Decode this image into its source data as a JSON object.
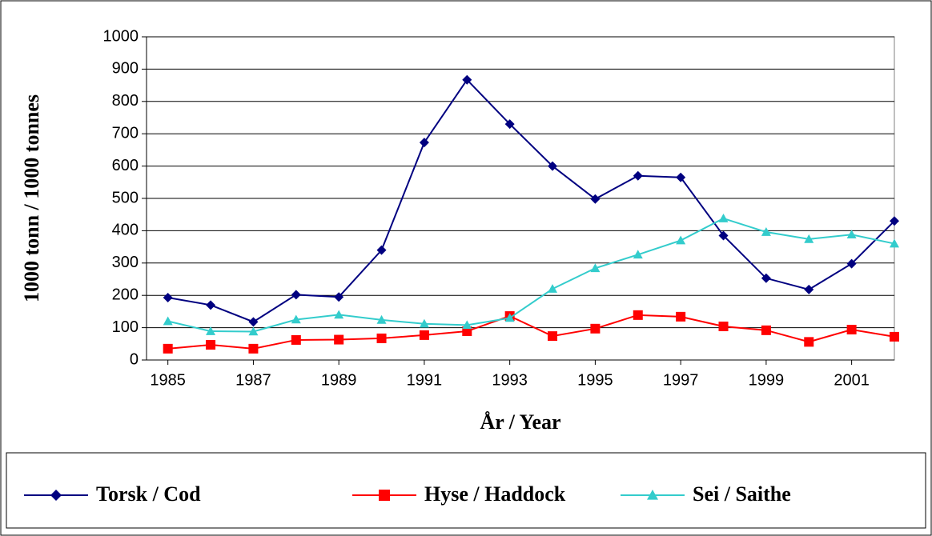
{
  "chart_data": {
    "type": "line",
    "x_label": "År / Year",
    "y_label": "1000 tonn / 1000 tonnes",
    "x": [
      1985,
      1986,
      1987,
      1988,
      1989,
      1990,
      1991,
      1992,
      1993,
      1994,
      1995,
      1996,
      1997,
      1998,
      1999,
      2000,
      2001,
      2002
    ],
    "series": [
      {
        "name": "Torsk / Cod",
        "color": "#000080",
        "marker": "diamond",
        "values": [
          193,
          170,
          118,
          202,
          195,
          340,
          673,
          867,
          730,
          600,
          498,
          570,
          565,
          385,
          253,
          218,
          298,
          430
        ]
      },
      {
        "name": "Hyse / Haddock",
        "color": "#ff0000",
        "marker": "square",
        "values": [
          35,
          47,
          35,
          62,
          63,
          67,
          77,
          89,
          136,
          74,
          97,
          139,
          134,
          104,
          92,
          56,
          94,
          72
        ]
      },
      {
        "name": "Sei / Saithe",
        "color": "#33cccc",
        "marker": "triangle",
        "values": [
          120,
          89,
          88,
          125,
          140,
          124,
          112,
          108,
          130,
          220,
          284,
          326,
          370,
          438,
          396,
          374,
          388,
          360
        ]
      }
    ],
    "xlim": [
      1984.5,
      2002
    ],
    "xticks": [
      1985,
      1987,
      1989,
      1991,
      1993,
      1995,
      1997,
      1999,
      2001
    ],
    "ylim": [
      0,
      1000
    ],
    "yticks": [
      0,
      100,
      200,
      300,
      400,
      500,
      600,
      700,
      800,
      900,
      1000
    ],
    "grid": true,
    "legend": "bottom"
  }
}
